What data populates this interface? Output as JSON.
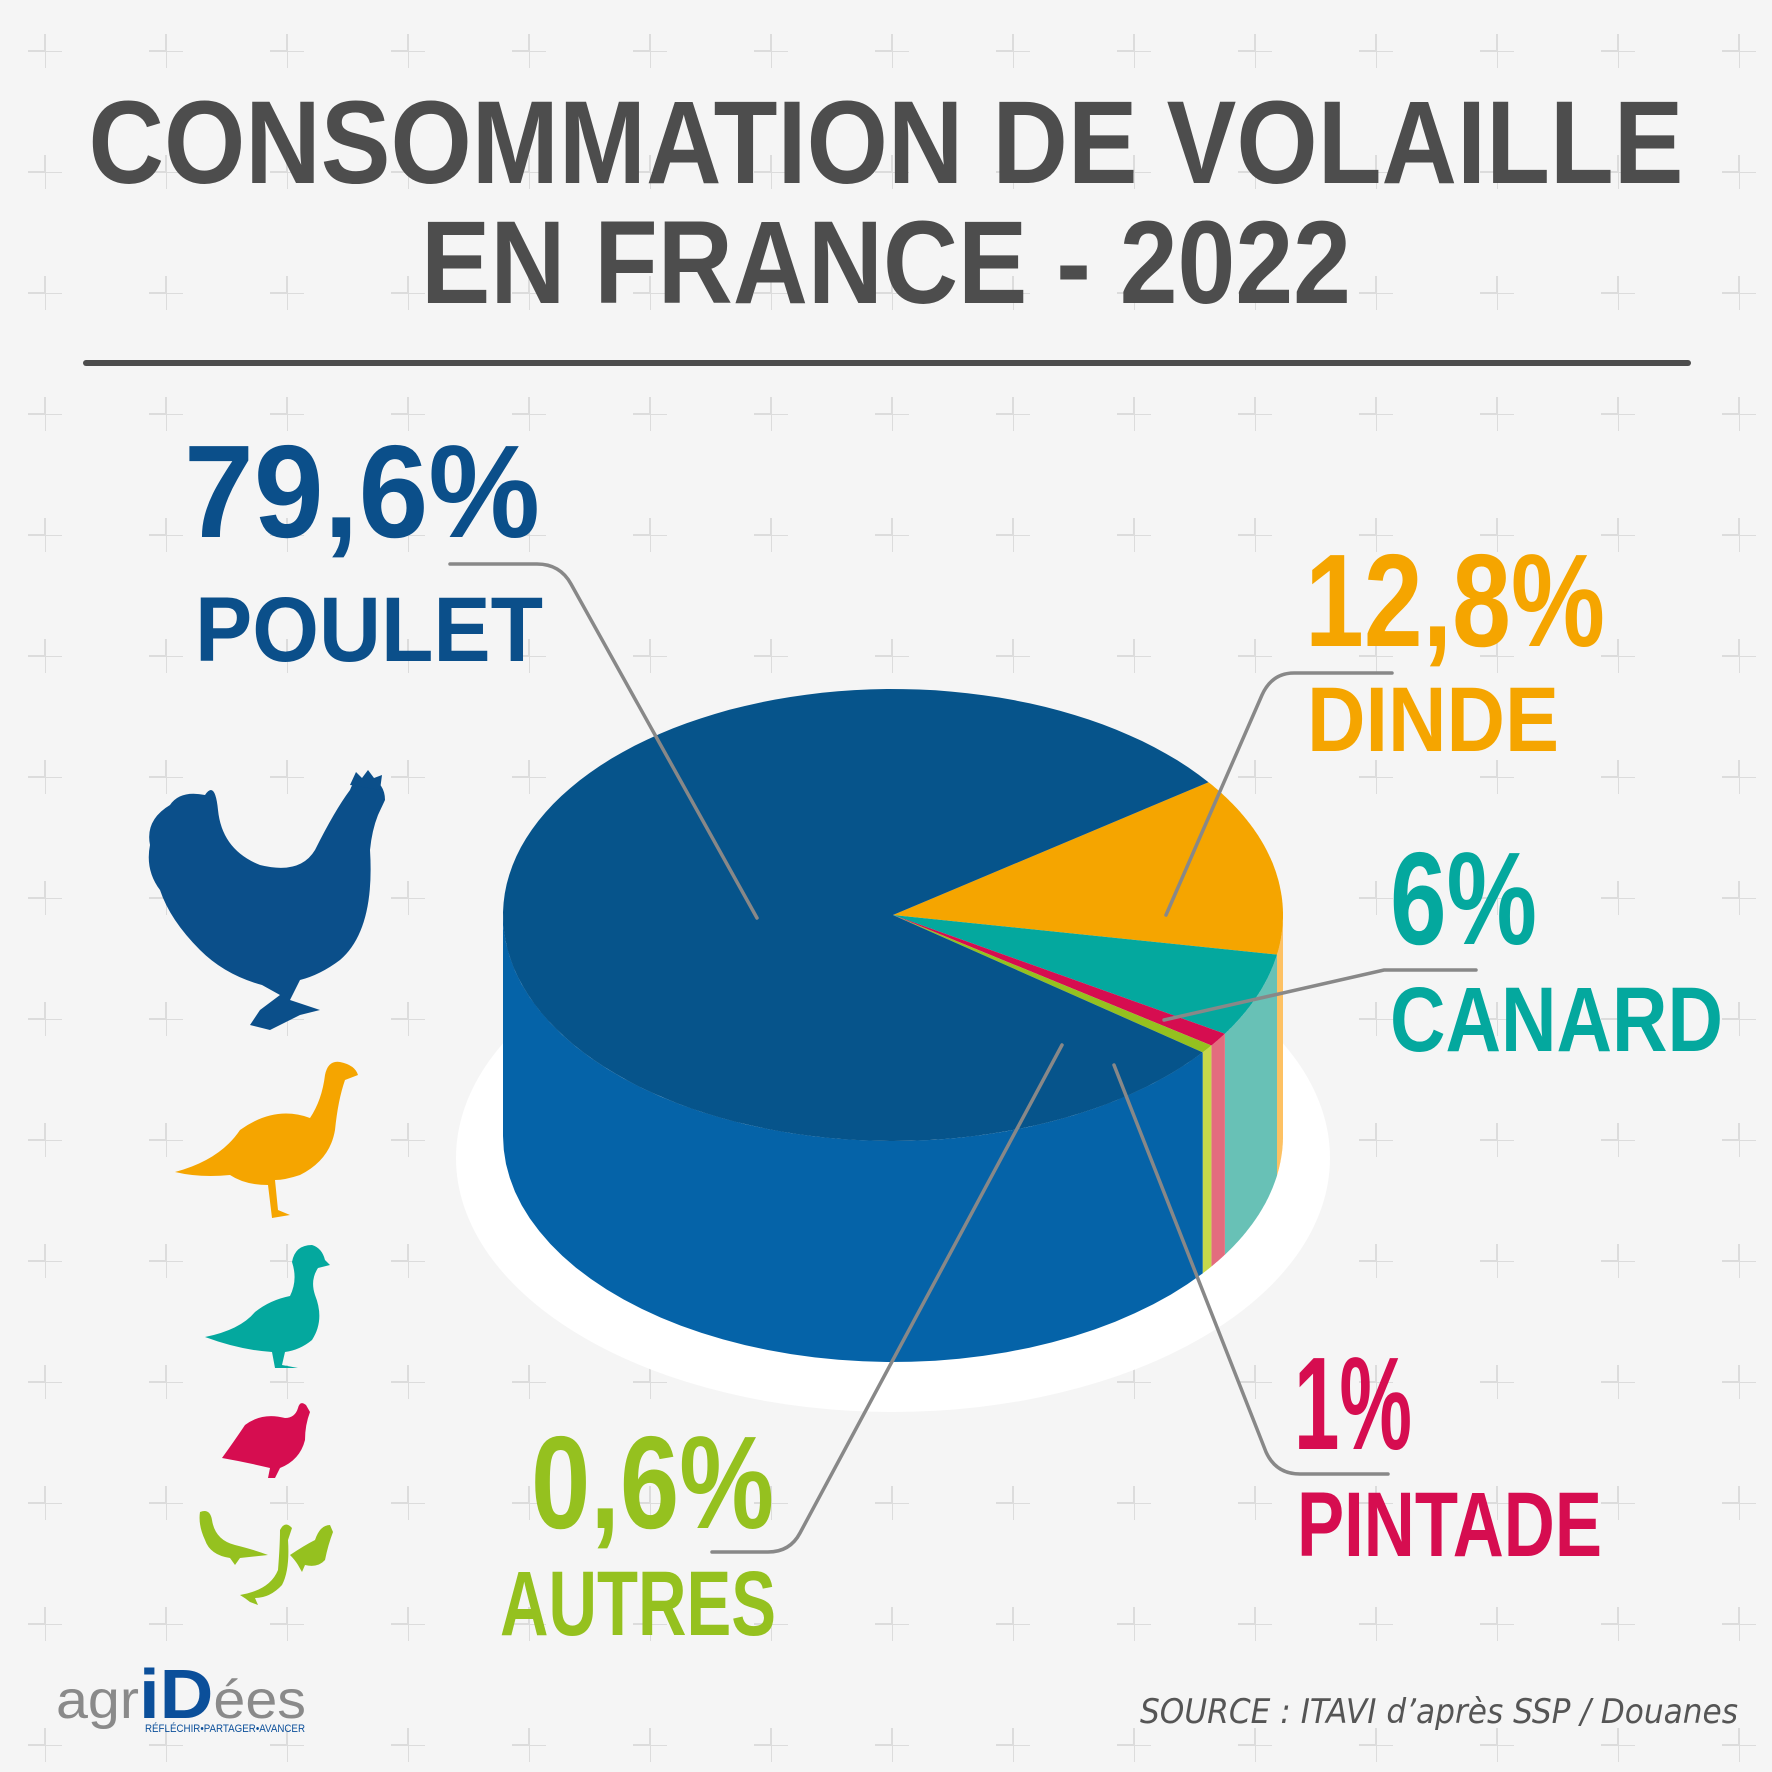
{
  "title_line1": "CONSOMMATION DE VOLAILLE",
  "title_line2": "EN FRANCE - 2022",
  "chart_data": {
    "type": "pie",
    "style": "3d",
    "title": "CONSOMMATION DE VOLAILLE EN FRANCE - 2022",
    "slices": [
      {
        "label": "POULET",
        "value": 79.6,
        "value_label": "79,6%",
        "color": "#06548b",
        "side_color": "#0563a8",
        "icon": "chicken-icon"
      },
      {
        "label": "DINDE",
        "value": 12.8,
        "value_label": "12,8%",
        "color": "#f5a500",
        "side_color": "#fdc163",
        "icon": "turkey-icon"
      },
      {
        "label": "CANARD",
        "value": 6,
        "value_label": "6%",
        "color": "#04a89e",
        "side_color": "#68c1b6",
        "icon": "duck-icon"
      },
      {
        "label": "PINTADE",
        "value": 1,
        "value_label": "1%",
        "color": "#d60d50",
        "side_color": "#e36c7e",
        "icon": "guinea-fowl-icon"
      },
      {
        "label": "AUTRES",
        "value": 0.6,
        "value_label": "0,6%",
        "color": "#95c11f",
        "side_color": "#c6d84a",
        "icon": "other-poultry-icon"
      }
    ]
  },
  "source": "SOURCE : ITAVI d’après SSP / Douanes",
  "logo": {
    "text_gray_1": "agr",
    "text_blue": "iD",
    "text_gray_2": "ées",
    "tagline": "RÉFLÉCHIR•PARTAGER•AVANCER"
  }
}
